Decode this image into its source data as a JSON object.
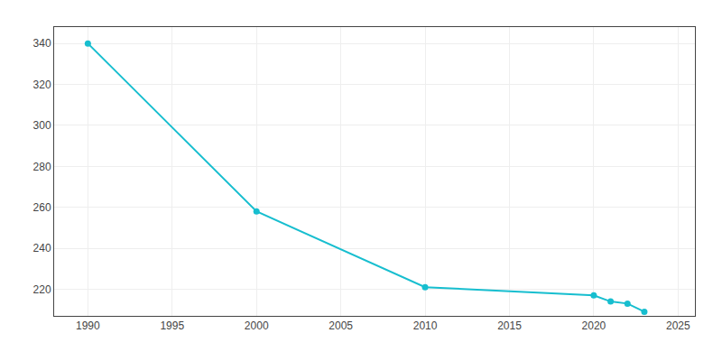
{
  "chart_data": {
    "type": "line",
    "x": [
      1990,
      2000,
      2010,
      2020,
      2021,
      2022,
      2023
    ],
    "values": [
      340,
      258,
      221,
      217,
      214,
      213,
      209
    ],
    "color": "#17becf",
    "marker": "circle",
    "xlim": [
      1988,
      2026
    ],
    "ylim": [
      207,
      348
    ],
    "xticks": [
      1990,
      1995,
      2000,
      2005,
      2010,
      2015,
      2020,
      2025
    ],
    "yticks": [
      220,
      240,
      260,
      280,
      300,
      320,
      340
    ],
    "grid": true
  }
}
